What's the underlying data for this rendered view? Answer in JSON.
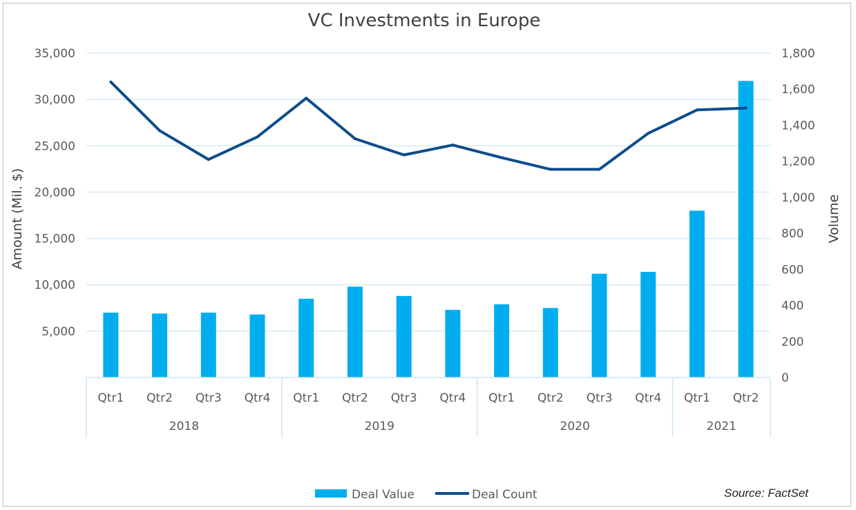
{
  "chart_data": {
    "type": "bar",
    "title": "VC Investments in Europe",
    "ylabel": "Amount (Mil. $)",
    "y2label": "Volume",
    "ylim": [
      0,
      35000
    ],
    "y2lim": [
      0,
      1800
    ],
    "y_ticks": [
      "5,000",
      "10,000",
      "15,000",
      "20,000",
      "25,000",
      "30,000",
      "35,000"
    ],
    "y2_ticks": [
      "0",
      "200",
      "400",
      "600",
      "800",
      "1,000",
      "1,200",
      "1,400",
      "1,600",
      "1,800"
    ],
    "categories": [
      "Qtr1",
      "Qtr2",
      "Qtr3",
      "Qtr4",
      "Qtr1",
      "Qtr2",
      "Qtr3",
      "Qtr4",
      "Qtr1",
      "Qtr2",
      "Qtr3",
      "Qtr4",
      "Qtr1",
      "Qtr2"
    ],
    "groups": [
      {
        "label": "2018",
        "count": 4
      },
      {
        "label": "2019",
        "count": 4
      },
      {
        "label": "2020",
        "count": 4
      },
      {
        "label": "2021",
        "count": 2
      }
    ],
    "series": [
      {
        "name": "Deal Value",
        "type": "bar",
        "axis": "left",
        "color": "#00aeef",
        "values": [
          7000,
          6900,
          7000,
          6800,
          8500,
          9800,
          8800,
          7300,
          7900,
          7500,
          11200,
          11400,
          18000,
          32000
        ]
      },
      {
        "name": "Deal Count",
        "type": "line",
        "axis": "right",
        "color": "#0d4c8c",
        "values": [
          1640,
          1370,
          1210,
          1335,
          1550,
          1325,
          1235,
          1290,
          1220,
          1155,
          1155,
          1355,
          1485,
          1495
        ]
      }
    ],
    "grid": true,
    "legend_position": "bottom",
    "source": "Source: FactSet"
  }
}
